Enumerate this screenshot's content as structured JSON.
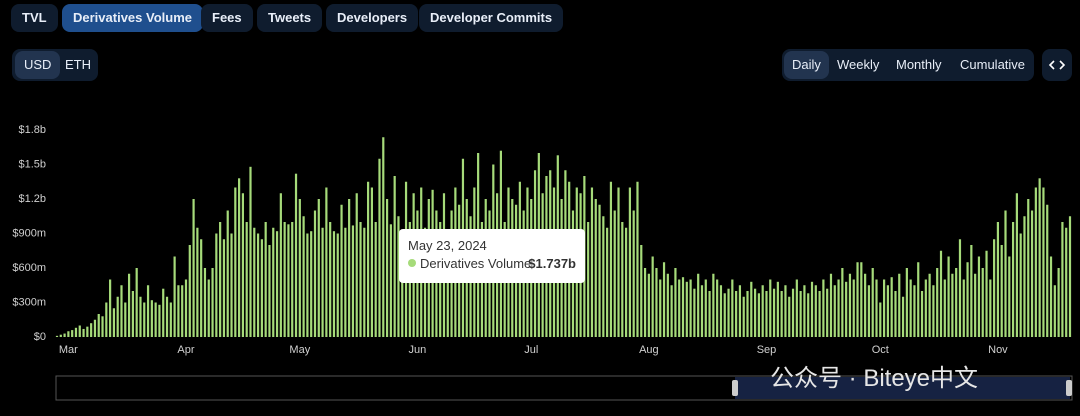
{
  "tabs": [
    "TVL",
    "Derivatives Volume",
    "Fees",
    "Tweets",
    "Developers",
    "Developer Commits"
  ],
  "currency": [
    "USD",
    "ETH"
  ],
  "periods": [
    "Daily",
    "Weekly",
    "Monthly",
    "Cumulative"
  ],
  "watermark": "公众号 · Biteye中文",
  "tooltip": {
    "title": "May 23, 2024",
    "series": "Derivatives Volume",
    "value": "$1.737b"
  },
  "chart_data": {
    "type": "bar",
    "categories": [
      null,
      null,
      null,
      "Mar",
      null,
      null,
      null,
      null,
      null,
      null,
      null,
      null,
      null,
      null,
      null,
      null,
      null,
      null,
      null,
      null,
      null,
      null,
      null,
      null,
      null,
      null,
      null,
      null,
      null,
      null,
      null,
      null,
      null,
      null,
      "Apr",
      null,
      null,
      null,
      null,
      null,
      null,
      null,
      null,
      null,
      null,
      null,
      null,
      null,
      null,
      null,
      null,
      null,
      null,
      null,
      null,
      null,
      null,
      null,
      null,
      null,
      null,
      null,
      null,
      null,
      "May",
      null,
      null,
      null,
      null,
      null,
      null,
      null,
      null,
      null,
      null,
      null,
      null,
      null,
      null,
      null,
      null,
      null,
      null,
      null,
      null,
      null,
      null,
      null,
      null,
      null,
      null,
      null,
      null,
      null,
      null,
      "Jun",
      null,
      null,
      null,
      null,
      null,
      null,
      null,
      null,
      null,
      null,
      null,
      null,
      null,
      null,
      null,
      null,
      null,
      null,
      null,
      null,
      null,
      null,
      null,
      null,
      null,
      null,
      null,
      null,
      null,
      "Jul",
      null,
      null,
      null,
      null,
      null,
      null,
      null,
      null,
      null,
      null,
      null,
      null,
      null,
      null,
      null,
      null,
      null,
      null,
      null,
      null,
      null,
      null,
      null,
      null,
      null,
      null,
      null,
      null,
      null,
      null,
      "Aug",
      null,
      null,
      null,
      null,
      null,
      null,
      null,
      null,
      null,
      null,
      null,
      null,
      null,
      null,
      null,
      null,
      null,
      null,
      null,
      null,
      null,
      null,
      null,
      null,
      null,
      null,
      null,
      null,
      null,
      null,
      "Sep",
      null,
      null,
      null,
      null,
      null,
      null,
      null,
      null,
      null,
      null,
      null,
      null,
      null,
      null,
      null,
      null,
      null,
      null,
      null,
      null,
      null,
      null,
      null,
      null,
      null,
      null,
      null,
      null,
      null,
      "Oct",
      null,
      null,
      null,
      null,
      null,
      null,
      null,
      null,
      null,
      null,
      null,
      null,
      null,
      null,
      null,
      null,
      null,
      null,
      null,
      null,
      null,
      null,
      null,
      null,
      null,
      null,
      null,
      null,
      null,
      null,
      "Nov",
      null,
      null,
      null,
      null,
      null,
      null,
      null,
      null,
      null,
      null,
      null,
      null,
      null,
      null,
      null,
      null,
      null,
      null,
      null
    ],
    "series": [
      {
        "name": "Derivatives Volume",
        "color": "#a6db7a",
        "values": [
          0.01,
          0.02,
          0.03,
          0.05,
          0.06,
          0.08,
          0.1,
          0.07,
          0.09,
          0.12,
          0.15,
          0.2,
          0.18,
          0.3,
          0.5,
          0.25,
          0.35,
          0.45,
          0.3,
          0.55,
          0.4,
          0.6,
          0.35,
          0.3,
          0.45,
          0.32,
          0.3,
          0.28,
          0.42,
          0.35,
          0.3,
          0.7,
          0.45,
          0.45,
          0.5,
          0.8,
          1.2,
          0.95,
          0.85,
          0.6,
          0.5,
          0.6,
          0.9,
          1.0,
          0.85,
          1.1,
          0.9,
          1.3,
          1.38,
          1.25,
          1.0,
          1.48,
          0.95,
          0.9,
          0.85,
          1.0,
          0.8,
          0.95,
          0.92,
          1.25,
          1.0,
          0.98,
          1.0,
          1.42,
          1.2,
          1.05,
          0.9,
          0.92,
          1.1,
          1.2,
          0.95,
          1.3,
          1.0,
          0.92,
          0.9,
          1.15,
          0.95,
          1.2,
          0.97,
          1.25,
          1.0,
          0.95,
          1.35,
          1.3,
          1.0,
          1.55,
          1.737,
          1.2,
          0.98,
          1.4,
          1.05,
          0.9,
          1.35,
          1.0,
          1.25,
          1.1,
          1.3,
          0.95,
          1.2,
          1.28,
          1.1,
          1.0,
          1.25,
          0.92,
          1.1,
          1.3,
          1.15,
          1.55,
          1.2,
          1.05,
          1.3,
          1.6,
          1.0,
          1.2,
          1.1,
          1.5,
          1.25,
          1.62,
          1.0,
          1.3,
          1.2,
          1.15,
          1.35,
          1.1,
          1.3,
          1.2,
          1.45,
          1.6,
          1.25,
          1.4,
          1.45,
          1.3,
          1.58,
          1.2,
          1.45,
          1.35,
          1.1,
          1.3,
          1.25,
          1.4,
          1.0,
          1.3,
          1.2,
          1.15,
          1.05,
          0.95,
          1.35,
          1.1,
          1.3,
          1.0,
          0.95,
          1.3,
          1.1,
          1.35,
          0.8,
          0.6,
          0.55,
          0.7,
          0.6,
          0.5,
          0.65,
          0.55,
          0.45,
          0.6,
          0.5,
          0.52,
          0.48,
          0.5,
          0.42,
          0.55,
          0.45,
          0.5,
          0.4,
          0.55,
          0.5,
          0.45,
          0.38,
          0.42,
          0.5,
          0.4,
          0.45,
          0.35,
          0.4,
          0.48,
          0.42,
          0.38,
          0.45,
          0.4,
          0.5,
          0.42,
          0.48,
          0.4,
          0.45,
          0.35,
          0.42,
          0.5,
          0.4,
          0.45,
          0.38,
          0.48,
          0.45,
          0.4,
          0.5,
          0.42,
          0.55,
          0.45,
          0.5,
          0.6,
          0.48,
          0.55,
          0.5,
          0.65,
          0.65,
          0.55,
          0.45,
          0.6,
          0.5,
          0.3,
          0.5,
          0.45,
          0.52,
          0.4,
          0.55,
          0.35,
          0.6,
          0.5,
          0.45,
          0.65,
          0.4,
          0.5,
          0.55,
          0.45,
          0.6,
          0.75,
          0.5,
          0.7,
          0.55,
          0.6,
          0.85,
          0.5,
          0.65,
          0.8,
          0.55,
          0.7,
          0.6,
          0.75,
          0.5,
          0.85,
          1.0,
          0.8,
          1.1,
          0.7,
          1.0,
          1.25,
          0.9,
          1.05,
          1.2,
          1.1,
          1.3,
          1.38,
          1.3,
          1.15,
          0.7,
          0.45,
          0.6,
          1.0,
          0.95,
          1.05
        ]
      }
    ],
    "ylim": [
      0,
      1.8
    ],
    "yticks": [
      {
        "value": 0,
        "label": "$0"
      },
      {
        "value": 0.3,
        "label": "$300m"
      },
      {
        "value": 0.6,
        "label": "$600m"
      },
      {
        "value": 0.9,
        "label": "$900m"
      },
      {
        "value": 1.2,
        "label": "$1.2b"
      },
      {
        "value": 1.5,
        "label": "$1.5b"
      },
      {
        "value": 1.8,
        "label": "$1.8b"
      }
    ],
    "grid": false
  }
}
